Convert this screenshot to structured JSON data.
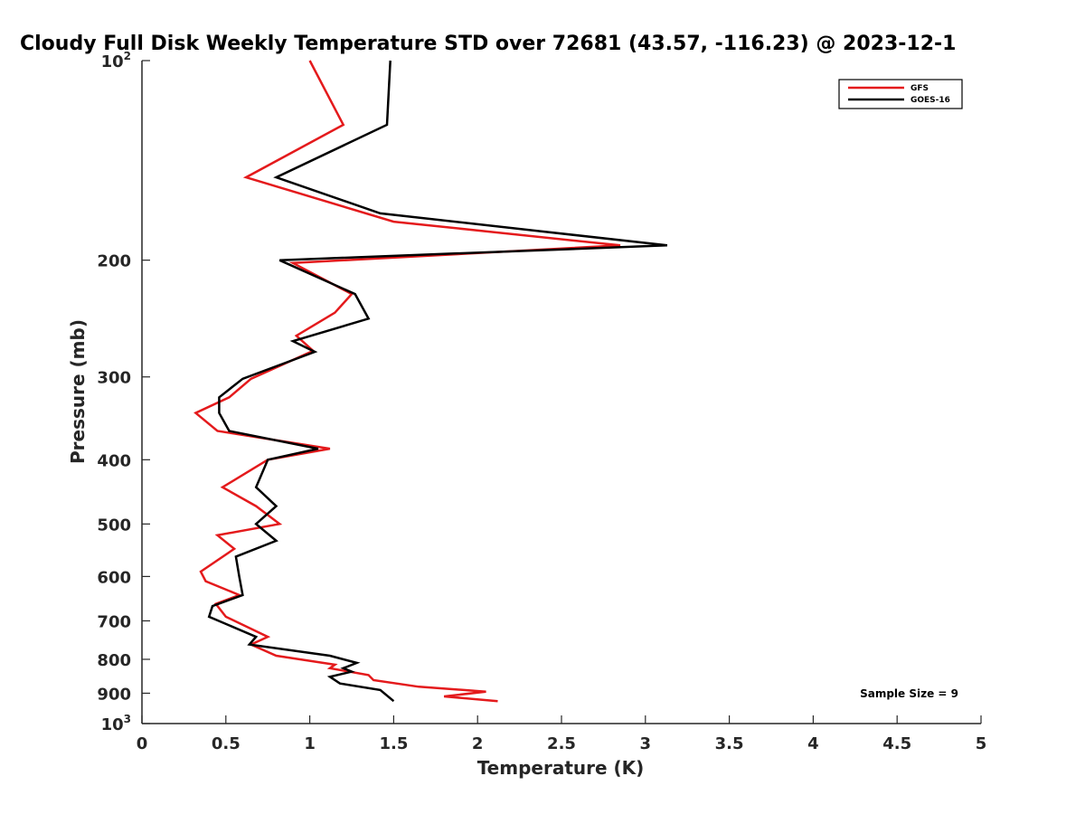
{
  "chart_data": {
    "type": "line",
    "title": "Cloudy Full Disk Weekly Temperature STD over 72681 (43.57, -116.23) @ 2023-12-1",
    "xlabel": "Temperature (K)",
    "ylabel": "Pressure (mb)",
    "xlim": [
      0,
      5
    ],
    "ylim": [
      100,
      1000
    ],
    "y_scale": "log",
    "y_reversed": true,
    "grid": false,
    "x_ticks": [
      {
        "value": 0,
        "label": "0"
      },
      {
        "value": 0.5,
        "label": "0.5"
      },
      {
        "value": 1,
        "label": "1"
      },
      {
        "value": 1.5,
        "label": "1.5"
      },
      {
        "value": 2,
        "label": "2"
      },
      {
        "value": 2.5,
        "label": "2.5"
      },
      {
        "value": 3,
        "label": "3"
      },
      {
        "value": 3.5,
        "label": "3.5"
      },
      {
        "value": 4,
        "label": "4"
      },
      {
        "value": 4.5,
        "label": "4.5"
      },
      {
        "value": 5,
        "label": "5"
      }
    ],
    "y_ticks": [
      {
        "value": 100,
        "base": "10",
        "sup": "2"
      },
      {
        "value": 200,
        "base": "200",
        "sup": ""
      },
      {
        "value": 300,
        "base": "300",
        "sup": ""
      },
      {
        "value": 400,
        "base": "400",
        "sup": ""
      },
      {
        "value": 500,
        "base": "500",
        "sup": ""
      },
      {
        "value": 600,
        "base": "600",
        "sup": ""
      },
      {
        "value": 700,
        "base": "700",
        "sup": ""
      },
      {
        "value": 800,
        "base": "800",
        "sup": ""
      },
      {
        "value": 900,
        "base": "900",
        "sup": ""
      },
      {
        "value": 1000,
        "base": "10",
        "sup": "3"
      }
    ],
    "legend_position": "top-right",
    "annotation": "Sample Size = 9",
    "series": [
      {
        "name": "GFS",
        "color": "#e41a1c",
        "points": [
          [
            1.0,
            100
          ],
          [
            1.2,
            125
          ],
          [
            0.62,
            150
          ],
          [
            1.5,
            175
          ],
          [
            2.85,
            190
          ],
          [
            0.9,
            202
          ],
          [
            1.25,
            225
          ],
          [
            1.15,
            240
          ],
          [
            0.92,
            260
          ],
          [
            1.02,
            274
          ],
          [
            0.65,
            302
          ],
          [
            0.52,
            322
          ],
          [
            0.32,
            340
          ],
          [
            0.45,
            362
          ],
          [
            1.12,
            385
          ],
          [
            0.75,
            400
          ],
          [
            0.48,
            440
          ],
          [
            0.68,
            470
          ],
          [
            0.82,
            500
          ],
          [
            0.45,
            520
          ],
          [
            0.55,
            545
          ],
          [
            0.35,
            590
          ],
          [
            0.38,
            610
          ],
          [
            0.58,
            640
          ],
          [
            0.44,
            660
          ],
          [
            0.5,
            690
          ],
          [
            0.75,
            740
          ],
          [
            0.65,
            760
          ],
          [
            0.8,
            790
          ],
          [
            1.15,
            815
          ],
          [
            1.12,
            825
          ],
          [
            1.35,
            845
          ],
          [
            1.38,
            860
          ],
          [
            1.65,
            880
          ],
          [
            2.05,
            895
          ],
          [
            1.8,
            910
          ],
          [
            2.12,
            925
          ]
        ]
      },
      {
        "name": "GOES-16",
        "color": "#000000",
        "points": [
          [
            1.48,
            100
          ],
          [
            1.46,
            125
          ],
          [
            0.8,
            150
          ],
          [
            1.42,
            170
          ],
          [
            3.13,
            190
          ],
          [
            0.82,
            200
          ],
          [
            1.27,
            225
          ],
          [
            1.35,
            245
          ],
          [
            0.9,
            265
          ],
          [
            1.03,
            275
          ],
          [
            0.6,
            302
          ],
          [
            0.46,
            322
          ],
          [
            0.46,
            340
          ],
          [
            0.52,
            362
          ],
          [
            1.05,
            385
          ],
          [
            0.75,
            400
          ],
          [
            0.68,
            440
          ],
          [
            0.8,
            470
          ],
          [
            0.68,
            500
          ],
          [
            0.8,
            530
          ],
          [
            0.56,
            560
          ],
          [
            0.58,
            600
          ],
          [
            0.6,
            640
          ],
          [
            0.42,
            665
          ],
          [
            0.4,
            690
          ],
          [
            0.68,
            740
          ],
          [
            0.64,
            760
          ],
          [
            1.12,
            790
          ],
          [
            1.28,
            810
          ],
          [
            1.2,
            825
          ],
          [
            1.25,
            835
          ],
          [
            1.12,
            850
          ],
          [
            1.18,
            870
          ],
          [
            1.42,
            890
          ],
          [
            1.5,
            925
          ]
        ]
      }
    ]
  }
}
